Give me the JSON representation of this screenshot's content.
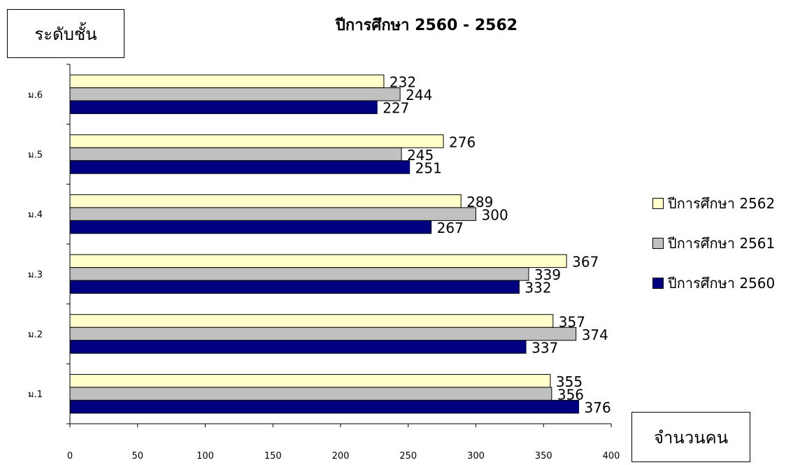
{
  "chart_data": {
    "type": "bar",
    "orientation": "horizontal",
    "title": "ปีการศึกษา 2560 - 2562",
    "ylabel": "ระดับชั้น",
    "xlabel": "จำนวนคน",
    "categories": [
      "ม.1",
      "ม.2",
      "ม.3",
      "ม.4",
      "ม.5",
      "ม.6"
    ],
    "series": [
      {
        "name": "ปีการศึกษา 2560",
        "color": "#000080",
        "values": [
          376,
          337,
          332,
          267,
          251,
          227
        ]
      },
      {
        "name": "ปีการศึกษา 2561",
        "color": "#C0C0C0",
        "values": [
          356,
          374,
          339,
          300,
          245,
          244
        ]
      },
      {
        "name": "ปีการศึกษา 2562",
        "color": "#FFFFCC",
        "values": [
          355,
          357,
          367,
          289,
          276,
          232
        ]
      }
    ],
    "xlim": [
      0,
      400
    ],
    "xticks": [
      0,
      50,
      100,
      150,
      200,
      250,
      300,
      350,
      400
    ],
    "grid": false,
    "legend": "right"
  }
}
